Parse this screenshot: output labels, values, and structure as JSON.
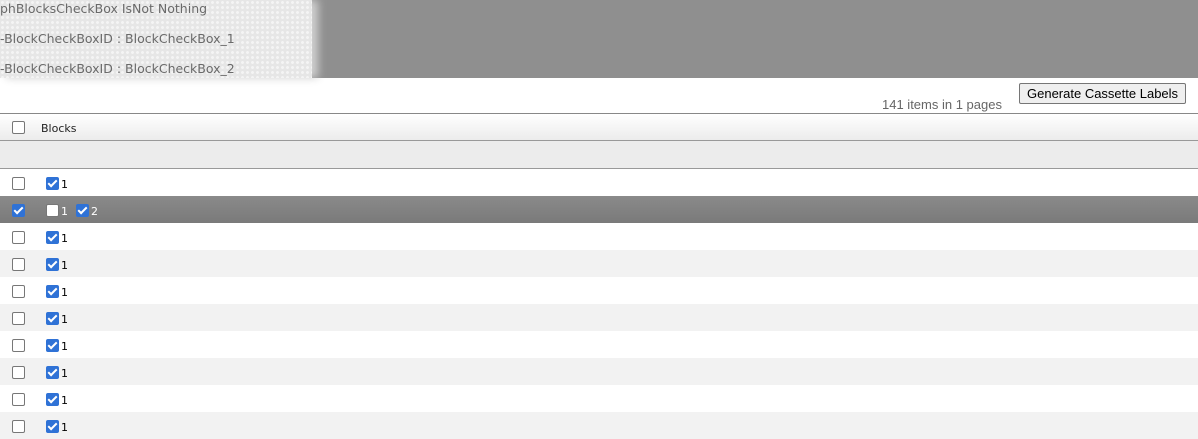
{
  "debug": {
    "lines": [
      "phBlocksCheckBox IsNot Nothing",
      "-BlockCheckBoxID : BlockCheckBox_1",
      "-BlockCheckBoxID : BlockCheckBox_2"
    ]
  },
  "pager": {
    "text": "141 items in 1 pages"
  },
  "toolbar": {
    "generate_label": "Generate Cassette Labels"
  },
  "grid": {
    "header": {
      "blocks": "Blocks",
      "select_all": false
    },
    "rows": [
      {
        "selected": false,
        "blocks": [
          {
            "label": "1",
            "checked": true
          }
        ]
      },
      {
        "selected": true,
        "blocks": [
          {
            "label": "1",
            "checked": false
          },
          {
            "label": "2",
            "checked": true
          }
        ]
      },
      {
        "selected": false,
        "blocks": [
          {
            "label": "1",
            "checked": true
          }
        ]
      },
      {
        "selected": false,
        "blocks": [
          {
            "label": "1",
            "checked": true
          }
        ]
      },
      {
        "selected": false,
        "blocks": [
          {
            "label": "1",
            "checked": true
          }
        ]
      },
      {
        "selected": false,
        "blocks": [
          {
            "label": "1",
            "checked": true
          }
        ]
      },
      {
        "selected": false,
        "blocks": [
          {
            "label": "1",
            "checked": true
          }
        ]
      },
      {
        "selected": false,
        "blocks": [
          {
            "label": "1",
            "checked": true
          }
        ]
      },
      {
        "selected": false,
        "blocks": [
          {
            "label": "1",
            "checked": true
          }
        ]
      },
      {
        "selected": false,
        "blocks": [
          {
            "label": "1",
            "checked": true
          }
        ]
      }
    ]
  }
}
